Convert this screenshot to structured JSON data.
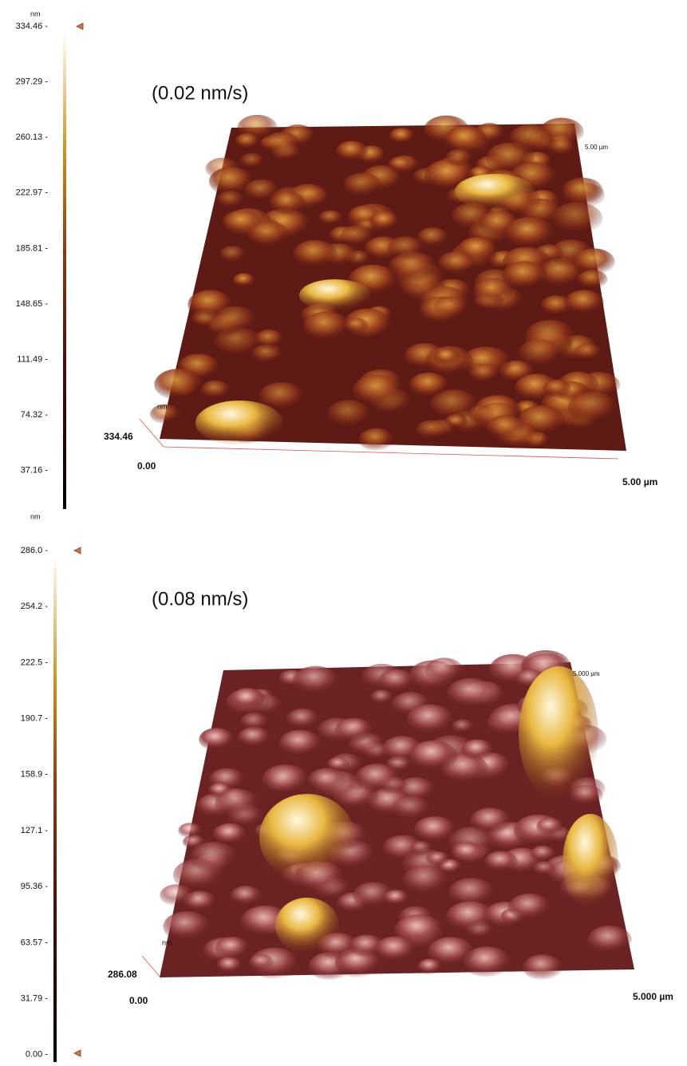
{
  "panels": [
    {
      "label": "(0.02 nm/s)",
      "colorbar": {
        "unit": "nm",
        "ticks": [
          "334.46 -",
          "297.29 -",
          "260.13 -",
          "222.97 -",
          "185.81 -",
          "148.65 -",
          "111.49 -",
          "74.32 -",
          "37.16 -"
        ]
      },
      "axes": {
        "z_unit": "nm",
        "z_max": "334.46",
        "origin": "0.00",
        "x_max": "5.00 µm",
        "y_max": "5.00 µm"
      }
    },
    {
      "label": "(0.08 nm/s)",
      "colorbar": {
        "unit": "nm",
        "ticks": [
          "286.0 -",
          "254.2 -",
          "222.5 -",
          "190.7 -",
          "158.9 -",
          "127.1 -",
          "95.36 -",
          "63.57 -",
          "31.79 -",
          "0.00 -"
        ]
      },
      "axes": {
        "z_unit": "nm",
        "z_max": "286.08",
        "origin": "0.00",
        "x_max": "5.000 µm",
        "y_max": "5.000 µm"
      }
    }
  ]
}
